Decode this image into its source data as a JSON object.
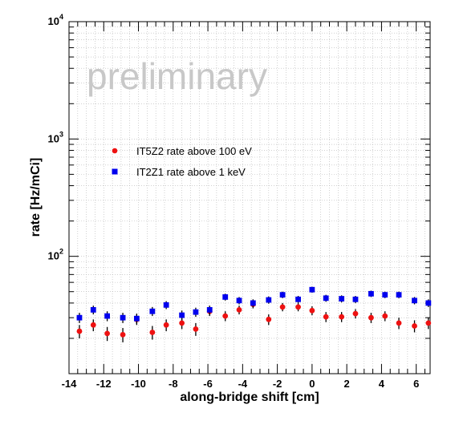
{
  "chart_data": {
    "type": "scatter",
    "title": "",
    "xlabel": "along-bridge shift [cm]",
    "ylabel": "rate [Hz/mCi]",
    "xlim": [
      -14,
      6.8
    ],
    "ylim": [
      10,
      10000
    ],
    "y_scale": "log",
    "grid": true,
    "watermark": "preliminary",
    "x_ticks": [
      -14,
      -12,
      -10,
      -8,
      -6,
      -4,
      -2,
      0,
      2,
      4,
      6
    ],
    "x_tick_labels": [
      "-14",
      "-12",
      "-10",
      "-8",
      "-6",
      "-4",
      "-2",
      "0",
      "2",
      "4",
      "6"
    ],
    "y_ticks": [
      100,
      1000,
      10000
    ],
    "y_tick_labels": [
      {
        "base": "10",
        "exp": "2"
      },
      {
        "base": "10",
        "exp": "3"
      },
      {
        "base": "10",
        "exp": "4"
      }
    ],
    "legend": {
      "position": "upper-left"
    },
    "series": [
      {
        "name": "IT5Z2 rate above 100 eV",
        "color": "#ee1111",
        "marker": "circle",
        "x": [
          -13.4,
          -12.6,
          -11.8,
          -10.9,
          -10.1,
          -9.2,
          -8.4,
          -7.5,
          -6.7,
          -5.9,
          -5.0,
          -4.2,
          -3.4,
          -2.5,
          -1.7,
          -0.8,
          0.0,
          0.8,
          1.7,
          2.5,
          3.4,
          4.2,
          5.0,
          5.9,
          6.7
        ],
        "y": [
          23,
          26,
          22,
          21.5,
          29,
          22.5,
          26,
          27,
          24,
          34,
          31,
          35,
          39,
          29,
          37,
          37,
          34.5,
          30.5,
          30.5,
          32.5,
          30,
          31,
          27,
          25.5,
          27
        ],
        "yerr": [
          3,
          3,
          3,
          3,
          3,
          3,
          3,
          3,
          3,
          3,
          3,
          3,
          3,
          3,
          3,
          3,
          3,
          3,
          3,
          3,
          3,
          3,
          3,
          3,
          3
        ]
      },
      {
        "name": "IT2Z1 rate above 1 keV",
        "color": "#0000ee",
        "marker": "square",
        "x": [
          -13.4,
          -12.6,
          -11.8,
          -10.9,
          -10.1,
          -9.2,
          -8.4,
          -7.5,
          -6.7,
          -5.9,
          -5.0,
          -4.2,
          -3.4,
          -2.5,
          -1.7,
          -0.8,
          0.0,
          0.8,
          1.7,
          2.5,
          3.4,
          4.2,
          5.0,
          5.9,
          6.7
        ],
        "y": [
          30,
          35,
          31,
          30,
          29.5,
          34,
          38.5,
          31.5,
          33.5,
          35,
          45,
          42,
          40,
          42.5,
          47,
          43,
          52,
          44,
          43.5,
          43,
          48,
          47,
          47,
          42,
          40
        ],
        "yerr": [
          3,
          3,
          3,
          3,
          3,
          3,
          3,
          3,
          3,
          3,
          3,
          3,
          3,
          3,
          3,
          3,
          3,
          3,
          3,
          3,
          3,
          3,
          3,
          3,
          3
        ]
      }
    ]
  }
}
